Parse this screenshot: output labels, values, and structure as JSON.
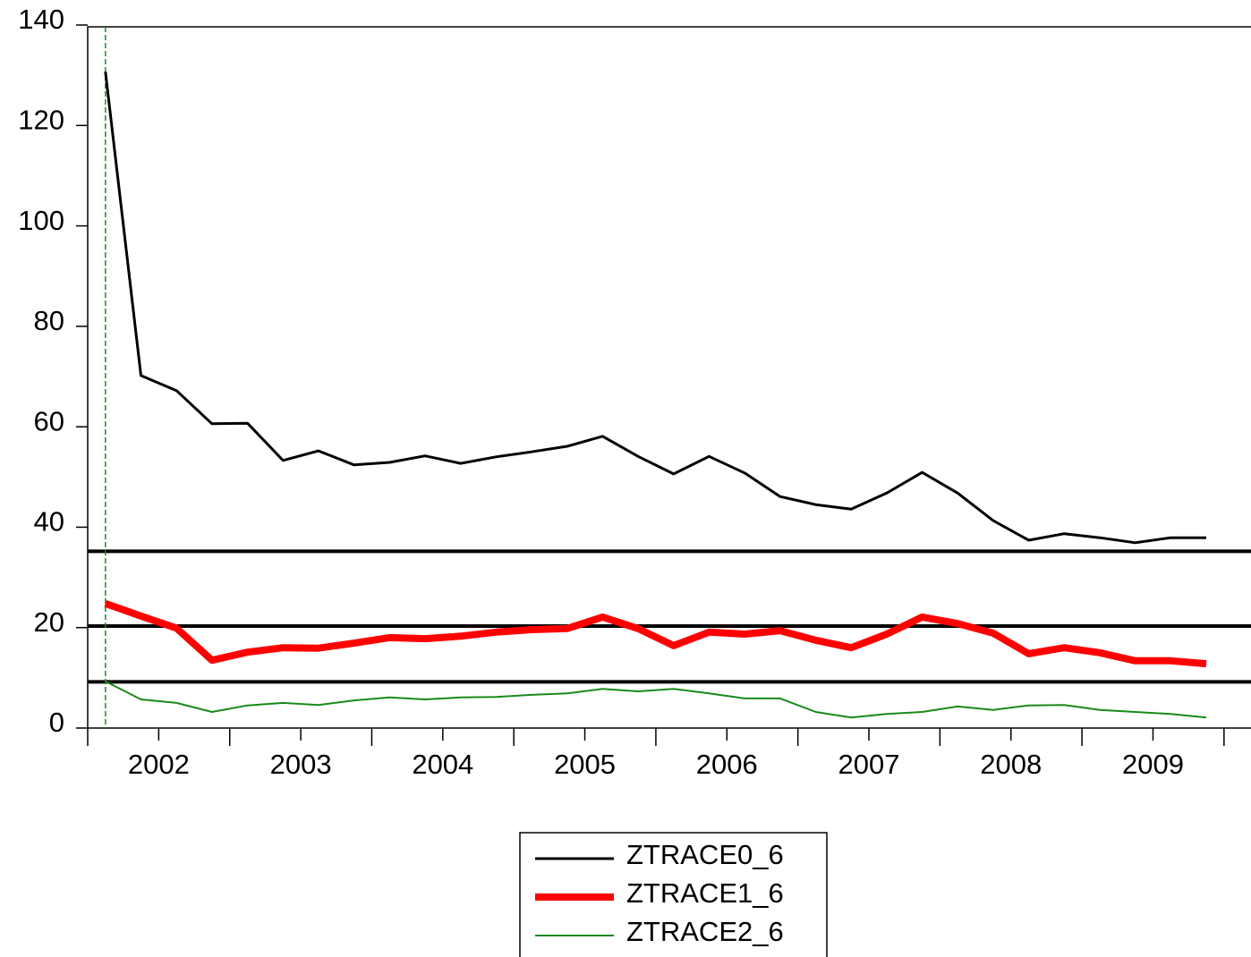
{
  "chart_data": {
    "type": "line",
    "x": [
      2002.125,
      2002.375,
      2002.625,
      2002.875,
      2003.125,
      2003.375,
      2003.625,
      2003.875,
      2004.125,
      2004.375,
      2004.625,
      2004.875,
      2005.125,
      2005.375,
      2005.625,
      2005.875,
      2006.125,
      2006.375,
      2006.625,
      2006.875,
      2007.125,
      2007.375,
      2007.625,
      2007.875,
      2008.125,
      2008.375,
      2008.625,
      2008.875,
      2009.125,
      2009.375,
      2009.625,
      2009.875
    ],
    "series": [
      {
        "name": "ZTRACE0_6",
        "color": "#000000",
        "width": 3,
        "values": [
          130.7,
          70.2,
          67.2,
          60.6,
          60.7,
          53.3,
          55.2,
          52.4,
          52.9,
          54.2,
          52.7,
          54.0,
          55.0,
          56.1,
          58.1,
          54.1,
          50.6,
          54.1,
          50.8,
          46.1,
          44.5,
          43.6,
          46.8,
          50.9,
          46.8,
          41.3,
          37.4,
          38.7,
          37.9,
          36.9,
          37.9,
          37.9
        ]
      },
      {
        "name": "ZTRACE1_6",
        "color": "#ff0000",
        "width": 8,
        "values": [
          24.8,
          22.3,
          19.9,
          13.5,
          15.1,
          16.0,
          15.9,
          16.9,
          18.0,
          17.8,
          18.3,
          19.1,
          19.6,
          19.8,
          22.1,
          19.8,
          16.4,
          19.1,
          18.7,
          19.4,
          17.5,
          16.0,
          18.7,
          22.1,
          20.8,
          18.9,
          14.8,
          16.0,
          15.0,
          13.4,
          13.4,
          12.8
        ]
      },
      {
        "name": "ZTRACE2_6",
        "color": "#1a8a1a",
        "width": 2,
        "values": [
          9.3,
          5.7,
          5.0,
          3.2,
          4.5,
          5.0,
          4.6,
          5.5,
          6.1,
          5.7,
          6.1,
          6.2,
          6.6,
          6.9,
          7.8,
          7.3,
          7.8,
          6.9,
          5.9,
          5.9,
          3.2,
          2.1,
          2.8,
          3.2,
          4.3,
          3.6,
          4.5,
          4.6,
          3.6,
          3.2,
          2.8,
          2.1
        ]
      }
    ],
    "ylim": [
      0,
      140
    ],
    "yticks": [
      0,
      20,
      40,
      60,
      80,
      100,
      120,
      140
    ],
    "xlim": [
      2002,
      2010.19
    ],
    "xticks": [
      {
        "value": 2002.5,
        "label": "2002"
      },
      {
        "value": 2003.5,
        "label": "2003"
      },
      {
        "value": 2004.5,
        "label": "2004"
      },
      {
        "value": 2005.5,
        "label": "2005"
      },
      {
        "value": 2006.5,
        "label": "2006"
      },
      {
        "value": 2007.5,
        "label": "2007"
      },
      {
        "value": 2008.5,
        "label": "2008"
      },
      {
        "value": 2009.5,
        "label": "2009"
      }
    ],
    "xmajorticks": [
      2002,
      2003,
      2004,
      2005,
      2006,
      2007,
      2008,
      2009,
      2010
    ],
    "hlines": [
      35.2,
      20.3,
      9.2
    ],
    "vline": 2002.125,
    "legend": "bottom"
  }
}
